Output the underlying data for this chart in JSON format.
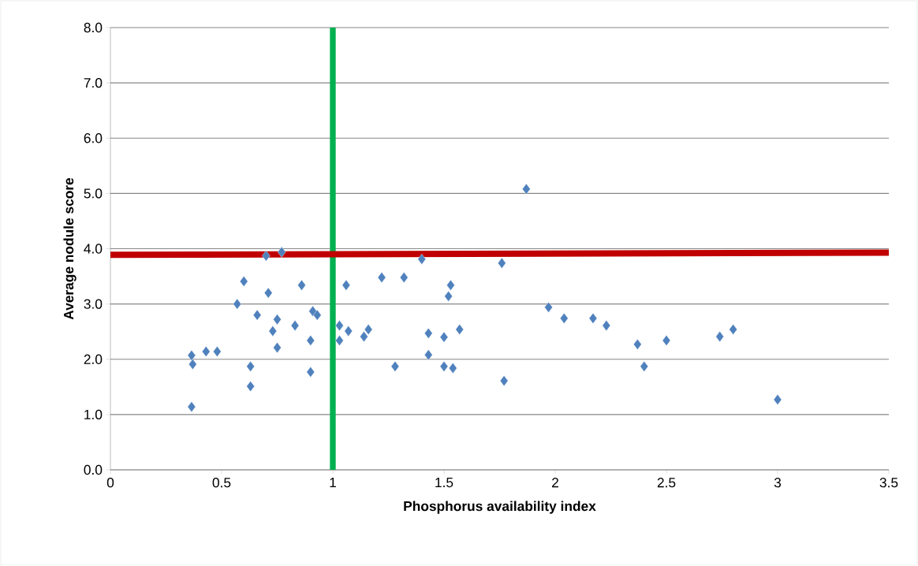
{
  "chart_data": {
    "type": "scatter",
    "xlabel": "Phosphorus availability index",
    "ylabel": "Average nodule score",
    "xlim": [
      0,
      3.5
    ],
    "xticks": [
      0,
      0.5,
      1,
      1.5,
      2,
      2.5,
      3,
      3.5
    ],
    "ylim": [
      0,
      8
    ],
    "yticks": [
      {
        "value": 0,
        "label": "0.0"
      },
      {
        "value": 1,
        "label": "1.0"
      },
      {
        "value": 2,
        "label": "2.0"
      },
      {
        "value": 3,
        "label": "3.0"
      },
      {
        "value": 4,
        "label": "4.0"
      },
      {
        "value": 5,
        "label": "5.0"
      },
      {
        "value": 6,
        "label": "6.0"
      },
      {
        "value": 7,
        "label": "7.0"
      },
      {
        "value": 8,
        "label": "8.0"
      }
    ],
    "grid": "y",
    "marker": "diamond",
    "series": [
      {
        "color": "#4f81bd",
        "x": [
          0.365,
          0.37,
          0.365,
          0.43,
          0.48,
          0.57,
          0.6,
          0.63,
          0.63,
          0.66,
          0.7,
          0.71,
          0.73,
          0.75,
          0.75,
          0.77,
          0.83,
          0.86,
          0.9,
          0.9,
          0.91,
          0.93,
          1.03,
          1.03,
          1.07,
          1.06,
          1.14,
          1.16,
          1.22,
          1.28,
          1.32,
          1.4,
          1.43,
          1.43,
          1.5,
          1.5,
          1.52,
          1.53,
          1.54,
          1.57,
          1.76,
          1.77,
          1.87,
          1.97,
          2.04,
          2.17,
          2.23,
          2.37,
          2.4,
          2.5,
          2.74,
          2.8,
          3.0
        ],
        "values": [
          2.07,
          1.91,
          1.14,
          2.14,
          2.14,
          3.0,
          3.41,
          1.87,
          1.51,
          2.8,
          3.87,
          3.2,
          2.51,
          2.72,
          2.21,
          3.94,
          2.61,
          3.34,
          2.34,
          1.77,
          2.87,
          2.8,
          2.61,
          2.34,
          2.51,
          3.34,
          2.41,
          2.54,
          3.48,
          1.87,
          3.48,
          3.81,
          2.47,
          2.08,
          2.4,
          1.87,
          3.14,
          3.34,
          1.84,
          2.54,
          3.74,
          1.61,
          5.08,
          2.94,
          2.74,
          2.74,
          2.61,
          2.27,
          1.87,
          2.34,
          2.41,
          2.54,
          1.27
        ]
      },
      {
        "type": "line",
        "marker": "none",
        "color": "#c00000",
        "x": [
          0,
          3.5
        ],
        "values": [
          3.89,
          3.93
        ]
      }
    ],
    "ref_lines": [
      {
        "axis": "x",
        "value": 1,
        "color": "#00b050"
      }
    ]
  }
}
